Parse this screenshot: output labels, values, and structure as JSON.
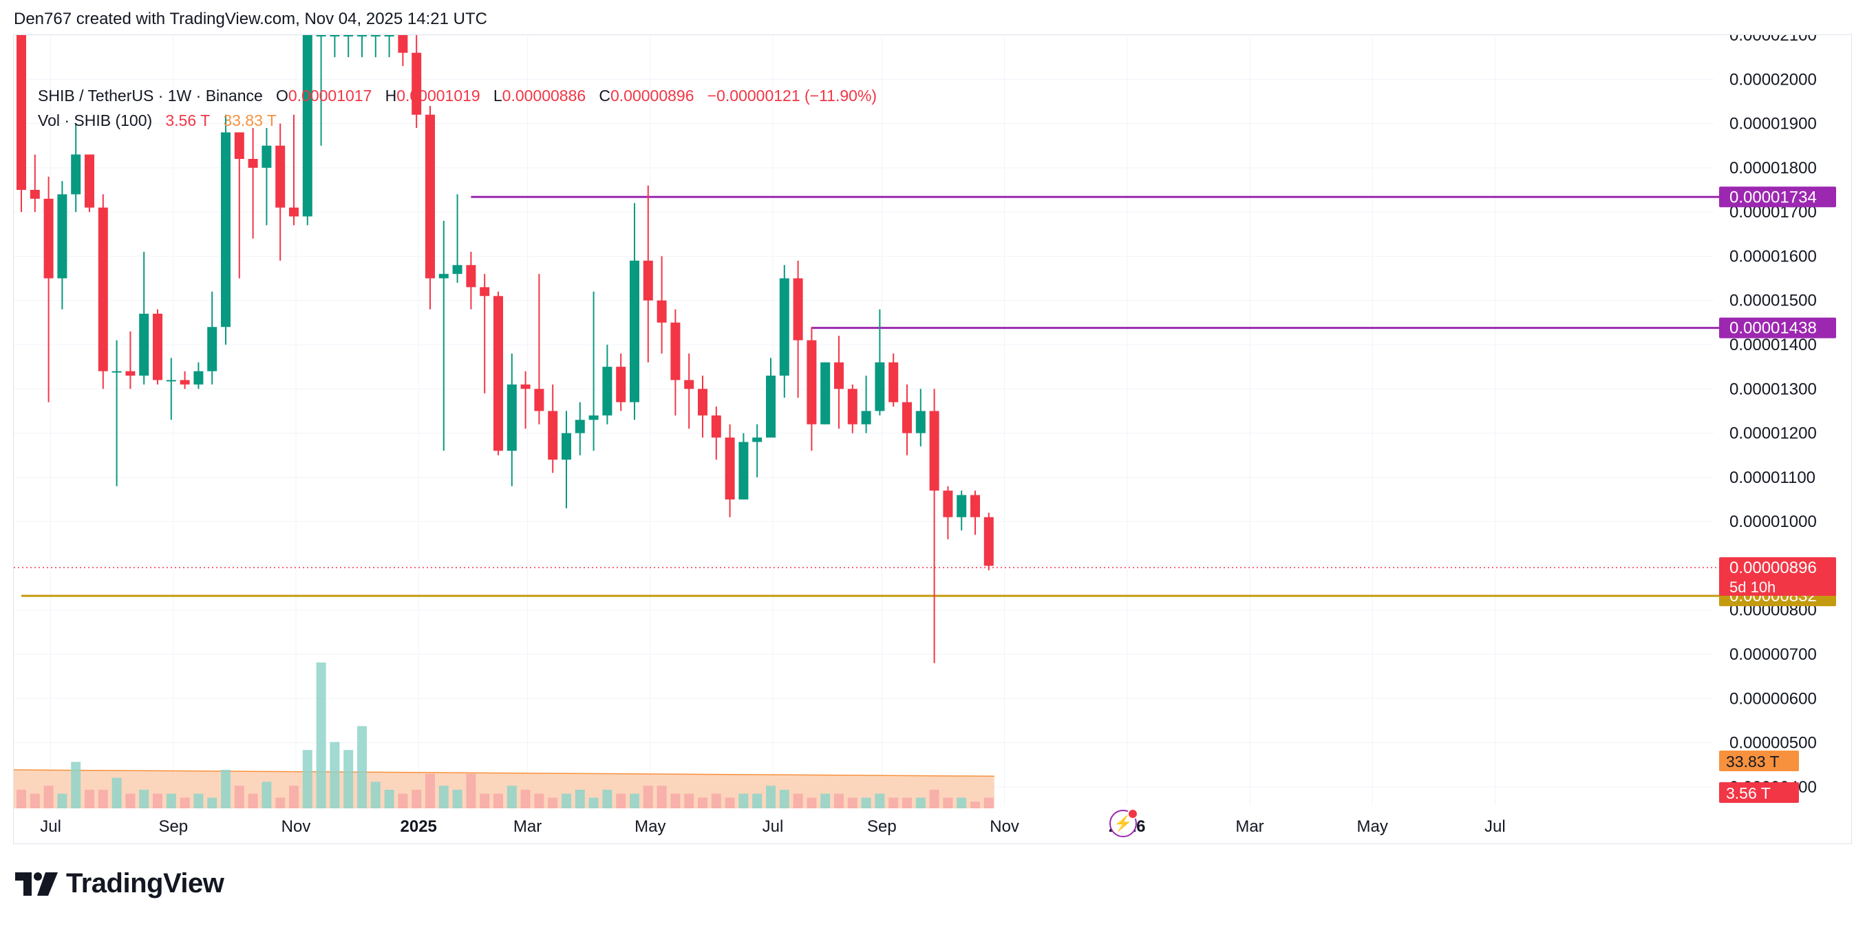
{
  "header": {
    "caption": "Den767 created with TradingView.com, Nov 04, 2025 14:21 UTC"
  },
  "legend": {
    "symbol": "SHIB / TetherUS · 1W · Binance",
    "open_label": "O",
    "open": "0.00001017",
    "high_label": "H",
    "high": "0.00001019",
    "low_label": "L",
    "low": "0.00000886",
    "close_label": "C",
    "close": "0.00000896",
    "change": "−0.00000121 (−11.90%)",
    "vol_label": "Vol · SHIB (100)",
    "vol_value": "3.56 T",
    "vol_ma": "33.83 T"
  },
  "footer": {
    "brand": "TradingView"
  },
  "colors": {
    "up": "#089981",
    "down": "#f23645",
    "up_vol": "#8fd4c9",
    "down_vol": "#f7a9a7",
    "resistance": "#9c27b0",
    "support": "#c49a0e",
    "vol_ma": "#f7913d",
    "grid": "#f0f3fa"
  },
  "icons": {
    "flash": "lightning-icon"
  },
  "chart_data": {
    "type": "candlestick",
    "symbol": "SHIB / TetherUS",
    "interval": "1W",
    "exchange": "Binance",
    "ylim": [
      3.5e-06,
      2.1e-05
    ],
    "y_ticks": [
      "0.00000400",
      "0.00000500",
      "0.00000600",
      "0.00000700",
      "0.00000800",
      "0.00000900",
      "0.00001000",
      "0.00001100",
      "0.00001200",
      "0.00001300",
      "0.00001400",
      "0.00001500",
      "0.00001600",
      "0.00001700",
      "0.00001800",
      "0.00001900",
      "0.00002000",
      "0.00002100"
    ],
    "x_ticks": [
      {
        "label": "Jul",
        "i": 2
      },
      {
        "label": "Sep",
        "i": 11
      },
      {
        "label": "Nov",
        "i": 20
      },
      {
        "label": "2025",
        "i": 29
      },
      {
        "label": "Mar",
        "i": 37
      },
      {
        "label": "May",
        "i": 46
      },
      {
        "label": "Jul",
        "i": 55
      },
      {
        "label": "Sep",
        "i": 63
      },
      {
        "label": "Nov",
        "i": 72
      },
      {
        "label": "2026",
        "i": 81
      },
      {
        "label": "Mar",
        "i": 90
      },
      {
        "label": "May",
        "i": 99
      },
      {
        "label": "Jul",
        "i": 108
      }
    ],
    "candles": [
      {
        "o": 2.1e-05,
        "h": 2.12e-05,
        "l": 1.7e-05,
        "c": 1.75e-05
      },
      {
        "o": 1.75e-05,
        "h": 1.83e-05,
        "l": 1.7e-05,
        "c": 1.73e-05
      },
      {
        "o": 1.73e-05,
        "h": 1.78e-05,
        "l": 1.27e-05,
        "c": 1.55e-05
      },
      {
        "o": 1.55e-05,
        "h": 1.77e-05,
        "l": 1.48e-05,
        "c": 1.74e-05
      },
      {
        "o": 1.74e-05,
        "h": 1.9e-05,
        "l": 1.7e-05,
        "c": 1.83e-05
      },
      {
        "o": 1.83e-05,
        "h": 1.83e-05,
        "l": 1.7e-05,
        "c": 1.71e-05
      },
      {
        "o": 1.71e-05,
        "h": 1.74e-05,
        "l": 1.3e-05,
        "c": 1.34e-05
      },
      {
        "o": 1.34e-05,
        "h": 1.41e-05,
        "l": 1.08e-05,
        "c": 1.34e-05
      },
      {
        "o": 1.34e-05,
        "h": 1.43e-05,
        "l": 1.3e-05,
        "c": 1.33e-05
      },
      {
        "o": 1.33e-05,
        "h": 1.61e-05,
        "l": 1.31e-05,
        "c": 1.47e-05
      },
      {
        "o": 1.47e-05,
        "h": 1.48e-05,
        "l": 1.31e-05,
        "c": 1.32e-05
      },
      {
        "o": 1.32e-05,
        "h": 1.37e-05,
        "l": 1.23e-05,
        "c": 1.32e-05
      },
      {
        "o": 1.32e-05,
        "h": 1.34e-05,
        "l": 1.3e-05,
        "c": 1.31e-05
      },
      {
        "o": 1.31e-05,
        "h": 1.36e-05,
        "l": 1.3e-05,
        "c": 1.34e-05
      },
      {
        "o": 1.34e-05,
        "h": 1.52e-05,
        "l": 1.31e-05,
        "c": 1.44e-05
      },
      {
        "o": 1.44e-05,
        "h": 1.92e-05,
        "l": 1.4e-05,
        "c": 1.88e-05
      },
      {
        "o": 1.88e-05,
        "h": 1.88e-05,
        "l": 1.55e-05,
        "c": 1.82e-05
      },
      {
        "o": 1.82e-05,
        "h": 1.89e-05,
        "l": 1.64e-05,
        "c": 1.8e-05
      },
      {
        "o": 1.8e-05,
        "h": 1.89e-05,
        "l": 1.67e-05,
        "c": 1.85e-05
      },
      {
        "o": 1.85e-05,
        "h": 1.9e-05,
        "l": 1.59e-05,
        "c": 1.71e-05
      },
      {
        "o": 1.71e-05,
        "h": 1.92e-05,
        "l": 1.67e-05,
        "c": 1.69e-05
      },
      {
        "o": 1.69e-05,
        "h": 2.1e-05,
        "l": 1.67e-05,
        "c": 2.1e-05
      },
      {
        "o": 2.1e-05,
        "h": 2.15e-05,
        "l": 1.85e-05,
        "c": 2.1e-05
      },
      {
        "o": 2.1e-05,
        "h": 2.15e-05,
        "l": 2.05e-05,
        "c": 2.1e-05
      },
      {
        "o": 2.1e-05,
        "h": 2.15e-05,
        "l": 2.05e-05,
        "c": 2.1e-05
      },
      {
        "o": 2.1e-05,
        "h": 2.15e-05,
        "l": 2.05e-05,
        "c": 2.1e-05
      },
      {
        "o": 2.1e-05,
        "h": 2.15e-05,
        "l": 2.05e-05,
        "c": 2.1e-05
      },
      {
        "o": 2.1e-05,
        "h": 2.15e-05,
        "l": 2.05e-05,
        "c": 2.1e-05
      },
      {
        "o": 2.1e-05,
        "h": 2.15e-05,
        "l": 2.03e-05,
        "c": 2.06e-05
      },
      {
        "o": 2.06e-05,
        "h": 2.12e-05,
        "l": 1.89e-05,
        "c": 1.92e-05
      },
      {
        "o": 1.92e-05,
        "h": 1.94e-05,
        "l": 1.48e-05,
        "c": 1.55e-05
      },
      {
        "o": 1.55e-05,
        "h": 1.68e-05,
        "l": 1.16e-05,
        "c": 1.56e-05
      },
      {
        "o": 1.56e-05,
        "h": 1.74e-05,
        "l": 1.54e-05,
        "c": 1.58e-05
      },
      {
        "o": 1.58e-05,
        "h": 1.61e-05,
        "l": 1.48e-05,
        "c": 1.53e-05
      },
      {
        "o": 1.53e-05,
        "h": 1.56e-05,
        "l": 1.29e-05,
        "c": 1.51e-05
      },
      {
        "o": 1.51e-05,
        "h": 1.52e-05,
        "l": 1.15e-05,
        "c": 1.16e-05
      },
      {
        "o": 1.16e-05,
        "h": 1.38e-05,
        "l": 1.08e-05,
        "c": 1.31e-05
      },
      {
        "o": 1.31e-05,
        "h": 1.34e-05,
        "l": 1.21e-05,
        "c": 1.3e-05
      },
      {
        "o": 1.3e-05,
        "h": 1.56e-05,
        "l": 1.22e-05,
        "c": 1.25e-05
      },
      {
        "o": 1.25e-05,
        "h": 1.31e-05,
        "l": 1.11e-05,
        "c": 1.14e-05
      },
      {
        "o": 1.14e-05,
        "h": 1.25e-05,
        "l": 1.03e-05,
        "c": 1.2e-05
      },
      {
        "o": 1.2e-05,
        "h": 1.27e-05,
        "l": 1.15e-05,
        "c": 1.23e-05
      },
      {
        "o": 1.23e-05,
        "h": 1.52e-05,
        "l": 1.16e-05,
        "c": 1.24e-05
      },
      {
        "o": 1.24e-05,
        "h": 1.4e-05,
        "l": 1.22e-05,
        "c": 1.35e-05
      },
      {
        "o": 1.35e-05,
        "h": 1.38e-05,
        "l": 1.25e-05,
        "c": 1.27e-05
      },
      {
        "o": 1.27e-05,
        "h": 1.72e-05,
        "l": 1.23e-05,
        "c": 1.59e-05
      },
      {
        "o": 1.59e-05,
        "h": 1.76e-05,
        "l": 1.36e-05,
        "c": 1.5e-05
      },
      {
        "o": 1.5e-05,
        "h": 1.6e-05,
        "l": 1.38e-05,
        "c": 1.45e-05
      },
      {
        "o": 1.45e-05,
        "h": 1.48e-05,
        "l": 1.24e-05,
        "c": 1.32e-05
      },
      {
        "o": 1.32e-05,
        "h": 1.38e-05,
        "l": 1.21e-05,
        "c": 1.3e-05
      },
      {
        "o": 1.3e-05,
        "h": 1.33e-05,
        "l": 1.19e-05,
        "c": 1.24e-05
      },
      {
        "o": 1.24e-05,
        "h": 1.26e-05,
        "l": 1.14e-05,
        "c": 1.19e-05
      },
      {
        "o": 1.19e-05,
        "h": 1.22e-05,
        "l": 1.01e-05,
        "c": 1.05e-05
      },
      {
        "o": 1.05e-05,
        "h": 1.2e-05,
        "l": 1.05e-05,
        "c": 1.18e-05
      },
      {
        "o": 1.18e-05,
        "h": 1.22e-05,
        "l": 1.1e-05,
        "c": 1.19e-05
      },
      {
        "o": 1.19e-05,
        "h": 1.37e-05,
        "l": 1.19e-05,
        "c": 1.33e-05
      },
      {
        "o": 1.33e-05,
        "h": 1.58e-05,
        "l": 1.28e-05,
        "c": 1.55e-05
      },
      {
        "o": 1.55e-05,
        "h": 1.59e-05,
        "l": 1.28e-05,
        "c": 1.41e-05
      },
      {
        "o": 1.41e-05,
        "h": 1.44e-05,
        "l": 1.16e-05,
        "c": 1.22e-05
      },
      {
        "o": 1.22e-05,
        "h": 1.36e-05,
        "l": 1.22e-05,
        "c": 1.36e-05
      },
      {
        "o": 1.36e-05,
        "h": 1.42e-05,
        "l": 1.21e-05,
        "c": 1.3e-05
      },
      {
        "o": 1.3e-05,
        "h": 1.31e-05,
        "l": 1.2e-05,
        "c": 1.22e-05
      },
      {
        "o": 1.22e-05,
        "h": 1.33e-05,
        "l": 1.2e-05,
        "c": 1.25e-05
      },
      {
        "o": 1.25e-05,
        "h": 1.48e-05,
        "l": 1.24e-05,
        "c": 1.36e-05
      },
      {
        "o": 1.36e-05,
        "h": 1.38e-05,
        "l": 1.26e-05,
        "c": 1.27e-05
      },
      {
        "o": 1.27e-05,
        "h": 1.31e-05,
        "l": 1.15e-05,
        "c": 1.2e-05
      },
      {
        "o": 1.2e-05,
        "h": 1.3e-05,
        "l": 1.17e-05,
        "c": 1.25e-05
      },
      {
        "o": 1.25e-05,
        "h": 1.3e-05,
        "l": 6.8e-06,
        "c": 1.07e-05
      },
      {
        "o": 1.07e-05,
        "h": 1.08e-05,
        "l": 9.6e-06,
        "c": 1.01e-05
      },
      {
        "o": 1.01e-05,
        "h": 1.07e-05,
        "l": 9.8e-06,
        "c": 1.06e-05
      },
      {
        "o": 1.06e-05,
        "h": 1.07e-05,
        "l": 9.7e-06,
        "c": 1.01e-05
      },
      {
        "o": 1.01e-05,
        "h": 1.02e-05,
        "l": 8.9e-06,
        "c": 9e-06
      }
    ],
    "volume_ylim": [
      0,
      45
    ],
    "volume": [
      4,
      3,
      5,
      3,
      11,
      4,
      4,
      7,
      3,
      4,
      3,
      3,
      2,
      3,
      2,
      9,
      5,
      3,
      6,
      2,
      5,
      14,
      36,
      16,
      14,
      20,
      6,
      4,
      3,
      4,
      8,
      5,
      4,
      8,
      3,
      3,
      5,
      4,
      3,
      2,
      3,
      4,
      2,
      4,
      3,
      3,
      5,
      5,
      3,
      3,
      2,
      3,
      2,
      3,
      3,
      5,
      4,
      3,
      2,
      3,
      3,
      2,
      2,
      3,
      2,
      2,
      2,
      4,
      2,
      2,
      1,
      2
    ],
    "volume_ma_start": 9.0,
    "volume_ma_end": 7.4,
    "horizontal_lines": [
      {
        "name": "resistance-1",
        "value": 1.734e-05,
        "label": "0.00001734",
        "start_index": 33
      },
      {
        "name": "resistance-2",
        "value": 1.438e-05,
        "label": "0.00001438",
        "start_index": 58
      },
      {
        "name": "support",
        "value": 8.32e-06,
        "label": "0.00000832",
        "start_index": 0
      }
    ],
    "last_price": {
      "value": 8.96e-06,
      "label": "0.00000896",
      "countdown": "5d 10h"
    },
    "volume_badges": {
      "ma": "33.83 T",
      "last": "3.56 T"
    }
  }
}
